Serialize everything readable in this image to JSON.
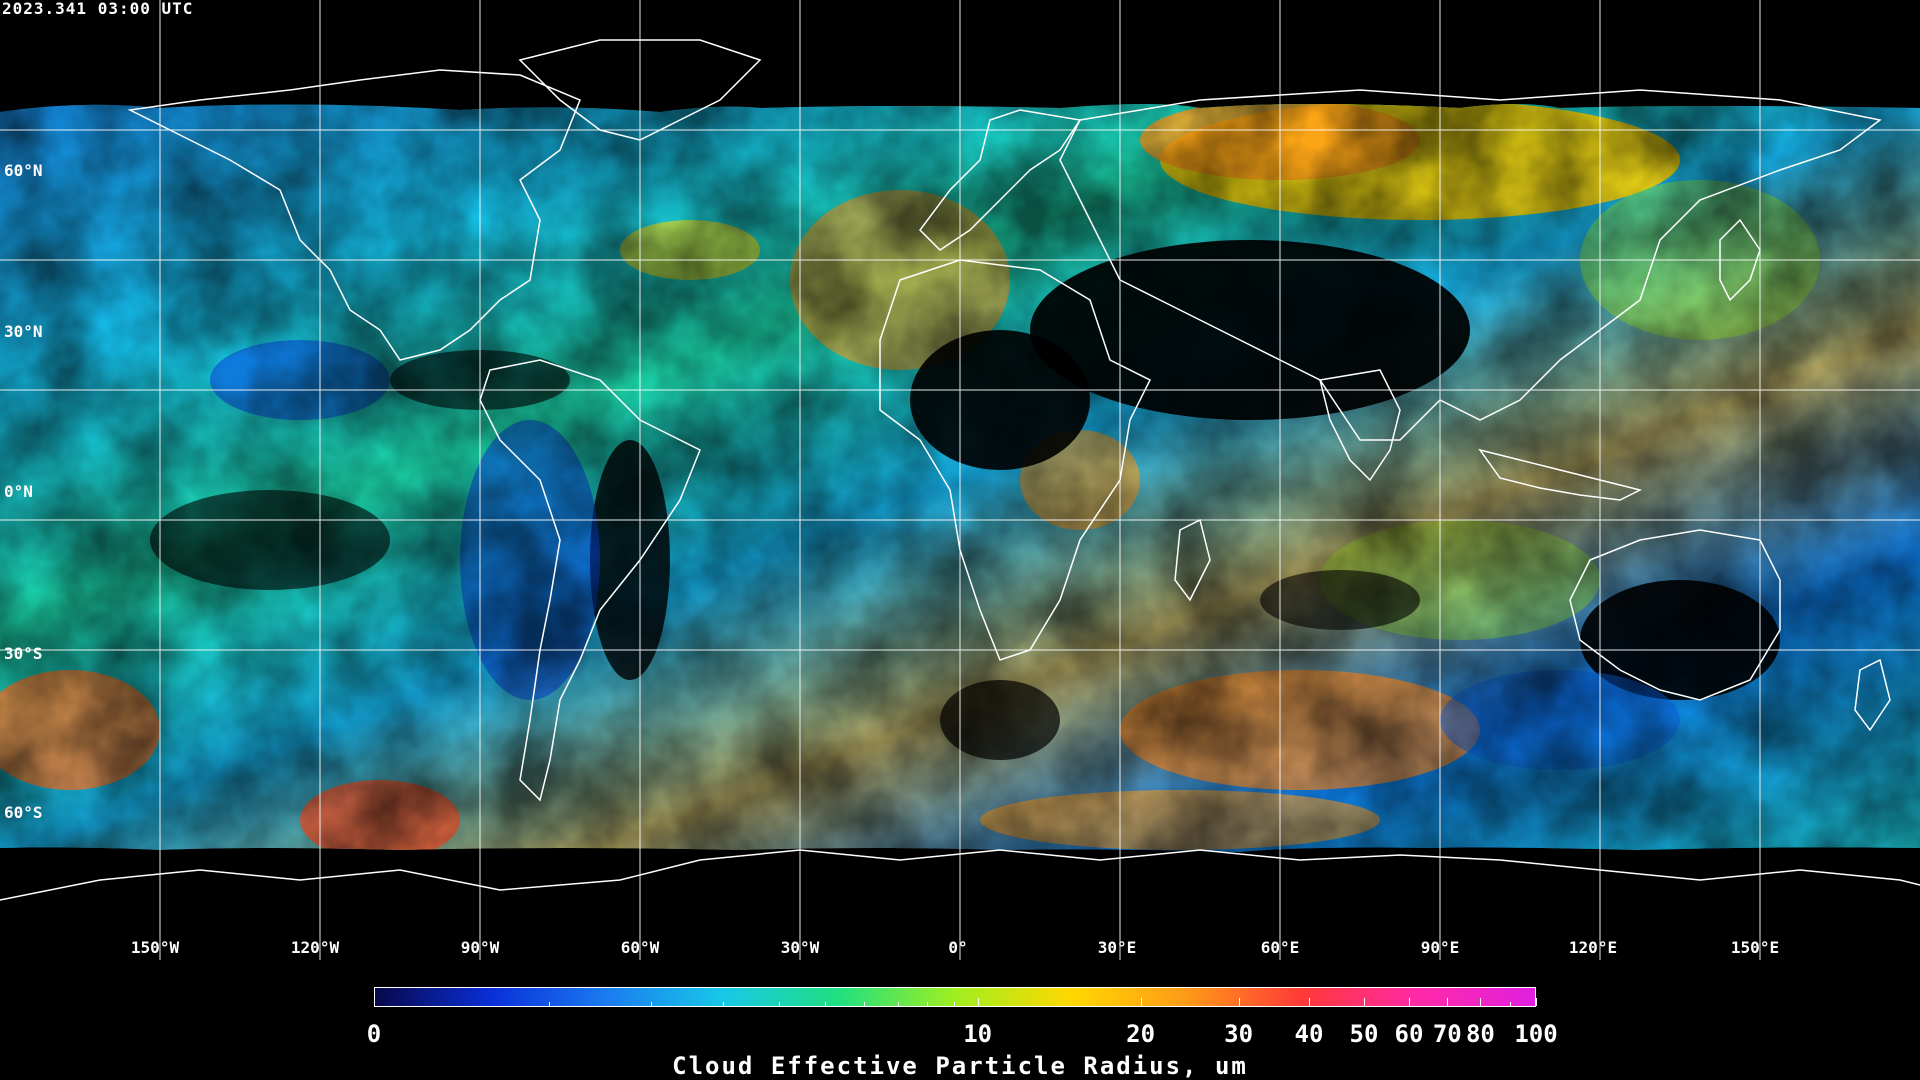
{
  "header": {
    "timestamp": "2023.341 03:00 UTC"
  },
  "map": {
    "projection": "equirectangular",
    "background_color": "#000000",
    "coastline_color": "#ffffff",
    "gridline_color": "#ffffff",
    "lat_labels": [
      "60°N",
      "30°N",
      "0°N",
      "30°S",
      "60°S"
    ],
    "lon_labels": [
      "150°W",
      "120°W",
      "90°W",
      "60°W",
      "30°W",
      "0°",
      "30°E",
      "60°E",
      "90°E",
      "120°E",
      "150°E"
    ]
  },
  "colorbar": {
    "title": "Cloud Effective Particle Radius, um",
    "scale": "log(1+x)",
    "range": [
      0,
      100
    ],
    "major_ticks": [
      {
        "value": 0,
        "label": "0"
      },
      {
        "value": 10,
        "label": "10"
      },
      {
        "value": 20,
        "label": "20"
      },
      {
        "value": 30,
        "label": "30"
      },
      {
        "value": 40,
        "label": "40"
      },
      {
        "value": 50,
        "label": "50"
      },
      {
        "value": 60,
        "label": "60"
      },
      {
        "value": 70,
        "label": "70"
      },
      {
        "value": 80,
        "label": "80"
      },
      {
        "value": 100,
        "label": "100"
      }
    ],
    "colors": [
      "#08084a",
      "#0a2fd8",
      "#1a7cf0",
      "#18c8e8",
      "#20e080",
      "#a0ee20",
      "#ffd800",
      "#ff9a18",
      "#ff3838",
      "#ff2aa8",
      "#e020e0"
    ]
  }
}
